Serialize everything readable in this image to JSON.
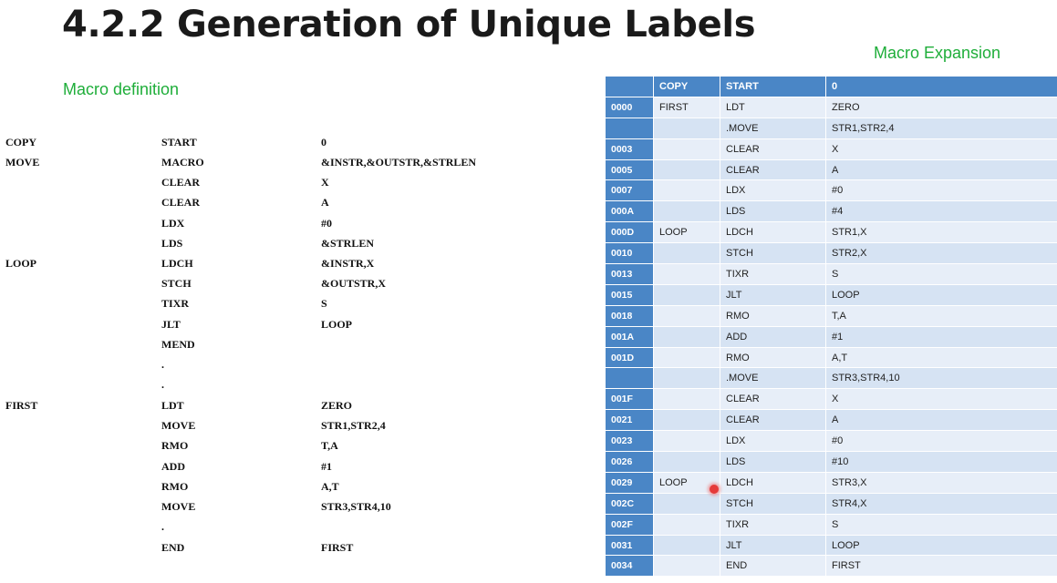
{
  "title": "4.2.2  Generation of Unique Labels",
  "macro_definition": {
    "heading": "Macro definition",
    "rows": [
      [
        "COPY",
        "START",
        "0"
      ],
      [
        "MOVE",
        "MACRO",
        "&INSTR,&OUTSTR,&STRLEN"
      ],
      [
        "",
        "CLEAR",
        "X"
      ],
      [
        "",
        "CLEAR",
        "A"
      ],
      [
        "",
        "LDX",
        "#0"
      ],
      [
        "",
        "LDS",
        "&STRLEN"
      ],
      [
        "LOOP",
        "LDCH",
        "&INSTR,X"
      ],
      [
        "",
        "STCH",
        "&OUTSTR,X"
      ],
      [
        "",
        "TIXR",
        "S"
      ],
      [
        "",
        "JLT",
        "LOOP"
      ],
      [
        "",
        "MEND",
        ""
      ],
      [
        "",
        ".",
        ""
      ],
      [
        "",
        ".",
        ""
      ],
      [
        "FIRST",
        "LDT",
        "ZERO"
      ],
      [
        "",
        "MOVE",
        "STR1,STR2,4"
      ],
      [
        "",
        "RMO",
        "T,A"
      ],
      [
        "",
        "ADD",
        "#1"
      ],
      [
        "",
        "RMO",
        "A,T"
      ],
      [
        "",
        "MOVE",
        "STR3,STR4,10"
      ],
      [
        "",
        ".",
        ""
      ],
      [
        "",
        "END",
        "FIRST"
      ]
    ]
  },
  "macro_expansion": {
    "heading": "Macro Expansion",
    "header": [
      "",
      "COPY",
      "START",
      "0"
    ],
    "rows": [
      [
        "0000",
        "FIRST",
        "LDT",
        "ZERO"
      ],
      [
        "",
        "",
        ".MOVE",
        "STR1,STR2,4"
      ],
      [
        "0003",
        "",
        "CLEAR",
        "X"
      ],
      [
        "0005",
        "",
        "CLEAR",
        "A"
      ],
      [
        "0007",
        "",
        "LDX",
        "#0"
      ],
      [
        "000A",
        "",
        "LDS",
        "#4"
      ],
      [
        "000D",
        "LOOP",
        "LDCH",
        "STR1,X"
      ],
      [
        "0010",
        "",
        "STCH",
        "STR2,X"
      ],
      [
        "0013",
        "",
        "TIXR",
        "S"
      ],
      [
        "0015",
        "",
        "JLT",
        "LOOP"
      ],
      [
        "0018",
        "",
        "RMO",
        "T,A"
      ],
      [
        "001A",
        "",
        "ADD",
        "#1"
      ],
      [
        "001D",
        "",
        "RMO",
        "A,T"
      ],
      [
        "",
        "",
        ".MOVE",
        "STR3,STR4,10"
      ],
      [
        "001F",
        "",
        "CLEAR",
        "X"
      ],
      [
        "0021",
        "",
        "CLEAR",
        "A"
      ],
      [
        "0023",
        "",
        "LDX",
        "#0"
      ],
      [
        "0026",
        "",
        "LDS",
        "#10"
      ],
      [
        "0029",
        "LOOP",
        "LDCH",
        "STR3,X"
      ],
      [
        "002C",
        "",
        "STCH",
        "STR4,X"
      ],
      [
        "002F",
        "",
        "TIXR",
        "S"
      ],
      [
        "0031",
        "",
        "JLT",
        "LOOP"
      ],
      [
        "0034",
        "",
        "END",
        "FIRST"
      ]
    ]
  },
  "colors": {
    "header_blue": "#4a86c6",
    "row_light": "#e7eef8",
    "row_dark": "#d6e3f3",
    "heading_green": "#1fae3a",
    "pointer_red": "#e53a3a"
  }
}
